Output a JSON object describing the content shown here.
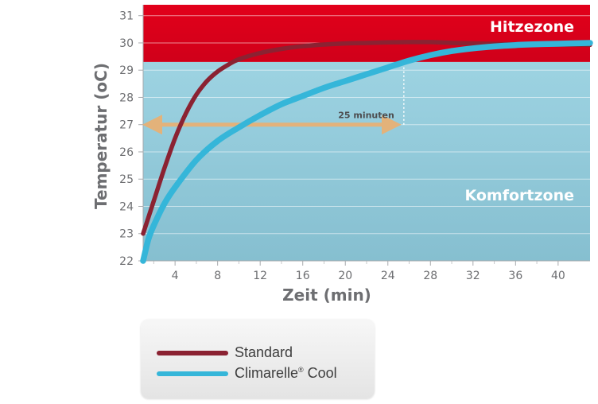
{
  "chart_data": {
    "type": "line",
    "xlabel": "Zeit (min)",
    "ylabel": "Temperatur (oC)",
    "xlim": [
      1,
      43
    ],
    "ylim": [
      22,
      31.4
    ],
    "x_ticks": [
      4,
      8,
      12,
      16,
      20,
      24,
      28,
      32,
      36,
      40
    ],
    "y_ticks": [
      22,
      23,
      24,
      25,
      26,
      27,
      28,
      29,
      30,
      31
    ],
    "grid": "horizontal",
    "zones": [
      {
        "name": "Hitzezone",
        "from": 29.3,
        "to": 31.4,
        "color": "#e2001a"
      },
      {
        "name": "Komfortzone",
        "from": 22,
        "to": 29.3,
        "color": "#8fc9d9"
      }
    ],
    "annotation": {
      "text": "25 minuten",
      "x_from": 1,
      "x_to": 25.2,
      "y": 27,
      "target_x": 25.5,
      "target_y": 29.1
    },
    "series": [
      {
        "name": "Standard",
        "color": "#8b2232",
        "x": [
          1,
          2,
          3,
          4,
          5,
          6,
          7,
          8,
          9,
          10,
          12,
          14,
          16,
          18,
          20,
          22,
          24,
          26,
          28,
          30,
          32,
          36,
          40,
          43
        ],
        "y": [
          23.0,
          24.2,
          25.4,
          26.5,
          27.4,
          28.1,
          28.6,
          28.95,
          29.2,
          29.4,
          29.63,
          29.78,
          29.88,
          29.94,
          29.98,
          30.0,
          30.02,
          30.03,
          30.03,
          30.0,
          29.98,
          29.95,
          29.94,
          29.93
        ]
      },
      {
        "name": "Climarelle® Cool",
        "color": "#35b6d9",
        "x": [
          1,
          1.5,
          2,
          3,
          4,
          6,
          8,
          10,
          12,
          14,
          16,
          18,
          20,
          22,
          24,
          26,
          28,
          30,
          32,
          34,
          36,
          38,
          40,
          43
        ],
        "y": [
          22.0,
          22.8,
          23.3,
          24.1,
          24.7,
          25.7,
          26.4,
          26.9,
          27.35,
          27.75,
          28.05,
          28.35,
          28.6,
          28.85,
          29.1,
          29.35,
          29.55,
          29.7,
          29.8,
          29.87,
          29.92,
          29.95,
          29.97,
          30.0
        ]
      }
    ]
  },
  "legend": {
    "items": [
      {
        "label": "Standard",
        "color": "#8b2232"
      },
      {
        "label": "Climarelle",
        "sup": "®",
        "suffix": " Cool",
        "color": "#35b6d9"
      }
    ]
  }
}
